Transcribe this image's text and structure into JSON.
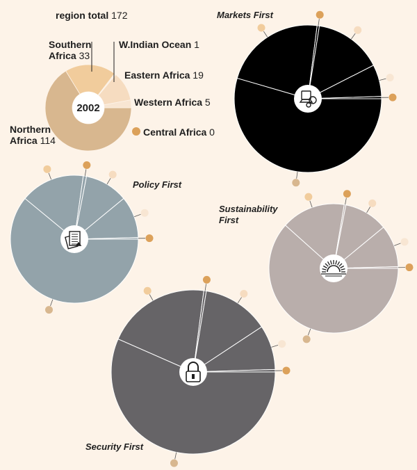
{
  "colors": {
    "background": "#fdf3e8",
    "northern": "#d8b78f",
    "southern": "#f1cc9c",
    "eastern": "#f6dcc0",
    "western": "#f8e6d3",
    "indian": "#fbefe2",
    "central": "#dca15a",
    "markets": "#000000",
    "policy": "#93a3aa",
    "sustainability": "#b9aeab",
    "security": "#666467",
    "wedge_line": "#ffffff"
  },
  "chart_data": [
    {
      "type": "pie",
      "id": "base-2002",
      "year_label": "2002",
      "total_label": "region total",
      "total_value": "172",
      "slices": [
        {
          "name": "Northern Africa",
          "name_lines": [
            "Northern",
            "Africa"
          ],
          "value": 114
        },
        {
          "name": "Southern Africa",
          "name_lines": [
            "Southern",
            "Africa"
          ],
          "value": 33
        },
        {
          "name": "W.Indian Ocean",
          "name_lines": [
            "W.Indian Ocean"
          ],
          "value": 1
        },
        {
          "name": "Eastern Africa",
          "name_lines": [
            "Eastern Africa"
          ],
          "value": 19
        },
        {
          "name": "Western Africa",
          "name_lines": [
            "Western Africa"
          ],
          "value": 5
        },
        {
          "name": "Central Africa",
          "name_lines": [
            "Central Africa"
          ],
          "value": 0
        }
      ]
    },
    {
      "type": "pie",
      "id": "markets-first",
      "title": "Markets First",
      "title_lines": [
        "Markets First"
      ],
      "icon": "computer-icon",
      "color_key": "markets",
      "slices": [
        {
          "name": "Northern Africa",
          "value": 218
        },
        {
          "name": "Southern Africa",
          "value": 90
        },
        {
          "name": "W.Indian Ocean",
          "value": 2
        },
        {
          "name": "Eastern Africa",
          "value": 60
        },
        {
          "name": "Western Africa",
          "value": 28
        },
        {
          "name": "Central Africa",
          "value": 2
        }
      ]
    },
    {
      "type": "pie",
      "id": "policy-first",
      "title": "Policy First",
      "title_lines": [
        "Policy First"
      ],
      "icon": "documents-icon",
      "color_key": "policy",
      "slices": [
        {
          "name": "Northern Africa",
          "value": 150
        },
        {
          "name": "Southern Africa",
          "value": 40
        },
        {
          "name": "W.Indian Ocean",
          "value": 2
        },
        {
          "name": "Eastern Africa",
          "value": 27
        },
        {
          "name": "Western Africa",
          "value": 26
        },
        {
          "name": "Central Africa",
          "value": 1
        }
      ]
    },
    {
      "type": "pie",
      "id": "sustainability-first",
      "title": "Sustainability First",
      "title_lines": [
        "Sustainability",
        "First"
      ],
      "icon": "sunrise-icon",
      "color_key": "sustainability",
      "slices": [
        {
          "name": "Northern Africa",
          "value": 146
        },
        {
          "name": "Southern Africa",
          "value": 38
        },
        {
          "name": "W.Indian Ocean",
          "value": 1
        },
        {
          "name": "Eastern Africa",
          "value": 26
        },
        {
          "name": "Western Africa",
          "value": 25
        },
        {
          "name": "Central Africa",
          "value": 1
        }
      ]
    },
    {
      "type": "pie",
      "id": "security-first",
      "title": "Security First",
      "title_lines": [
        "Security First"
      ],
      "icon": "padlock-icon",
      "color_key": "security",
      "slices": [
        {
          "name": "Northern Africa",
          "value": 232
        },
        {
          "name": "Southern Africa",
          "value": 84
        },
        {
          "name": "W.Indian Ocean",
          "value": 2
        },
        {
          "name": "Eastern Africa",
          "value": 54
        },
        {
          "name": "Western Africa",
          "value": 36
        },
        {
          "name": "Central Africa",
          "value": 2
        }
      ]
    }
  ]
}
